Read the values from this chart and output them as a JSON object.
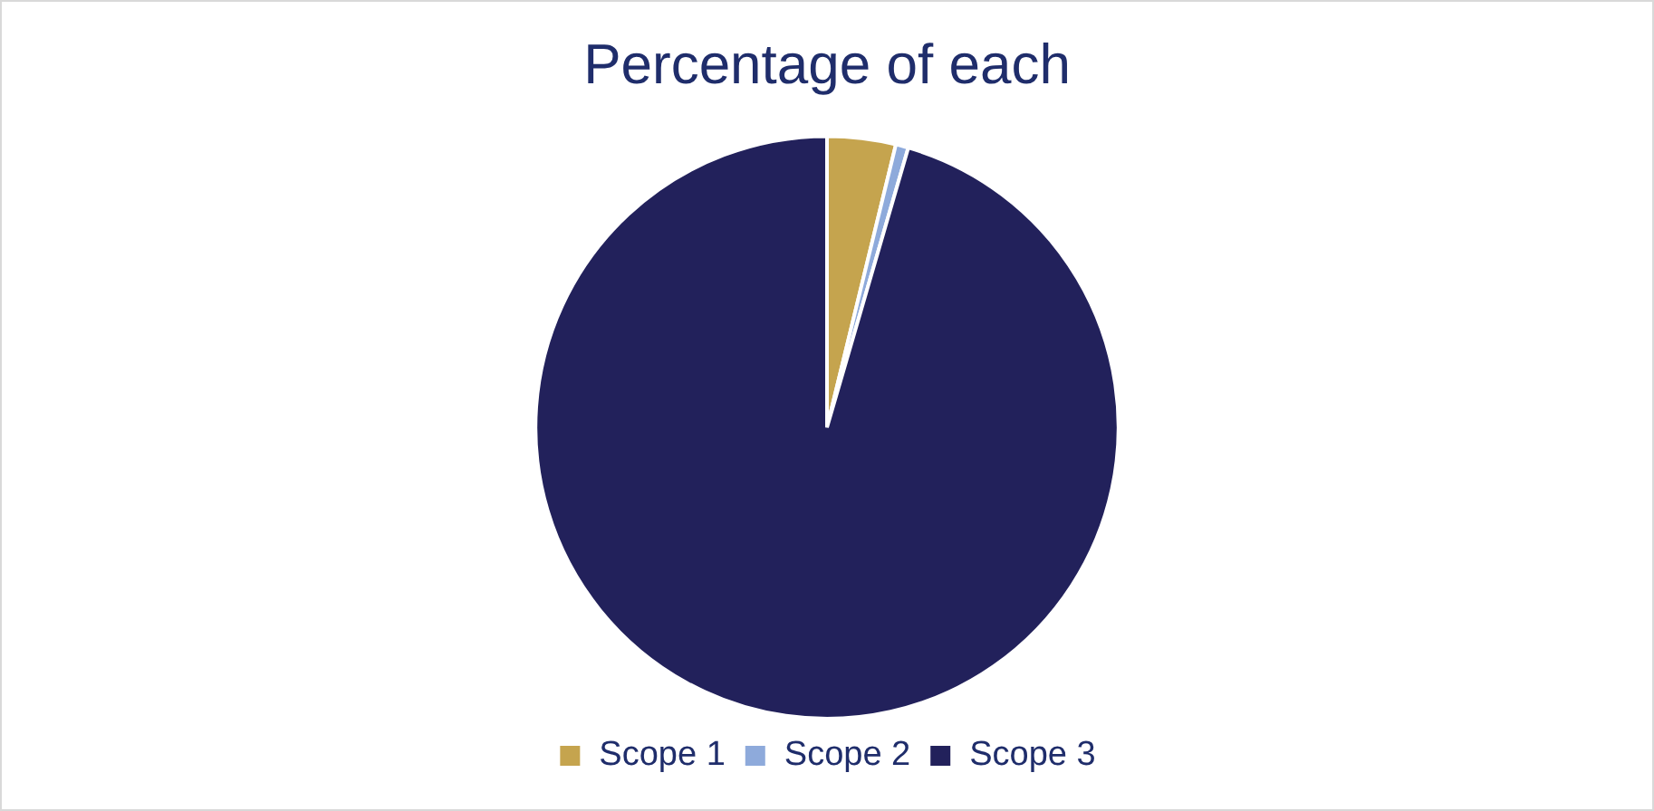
{
  "chart_data": {
    "type": "pie",
    "title": "Percentage of each",
    "categories": [
      "Scope 1",
      "Scope 2",
      "Scope 3"
    ],
    "values": [
      3.8,
      0.7,
      95.5
    ],
    "colors": [
      "#c5a44e",
      "#8eaadb",
      "#22215b"
    ],
    "legend": "bottom"
  }
}
